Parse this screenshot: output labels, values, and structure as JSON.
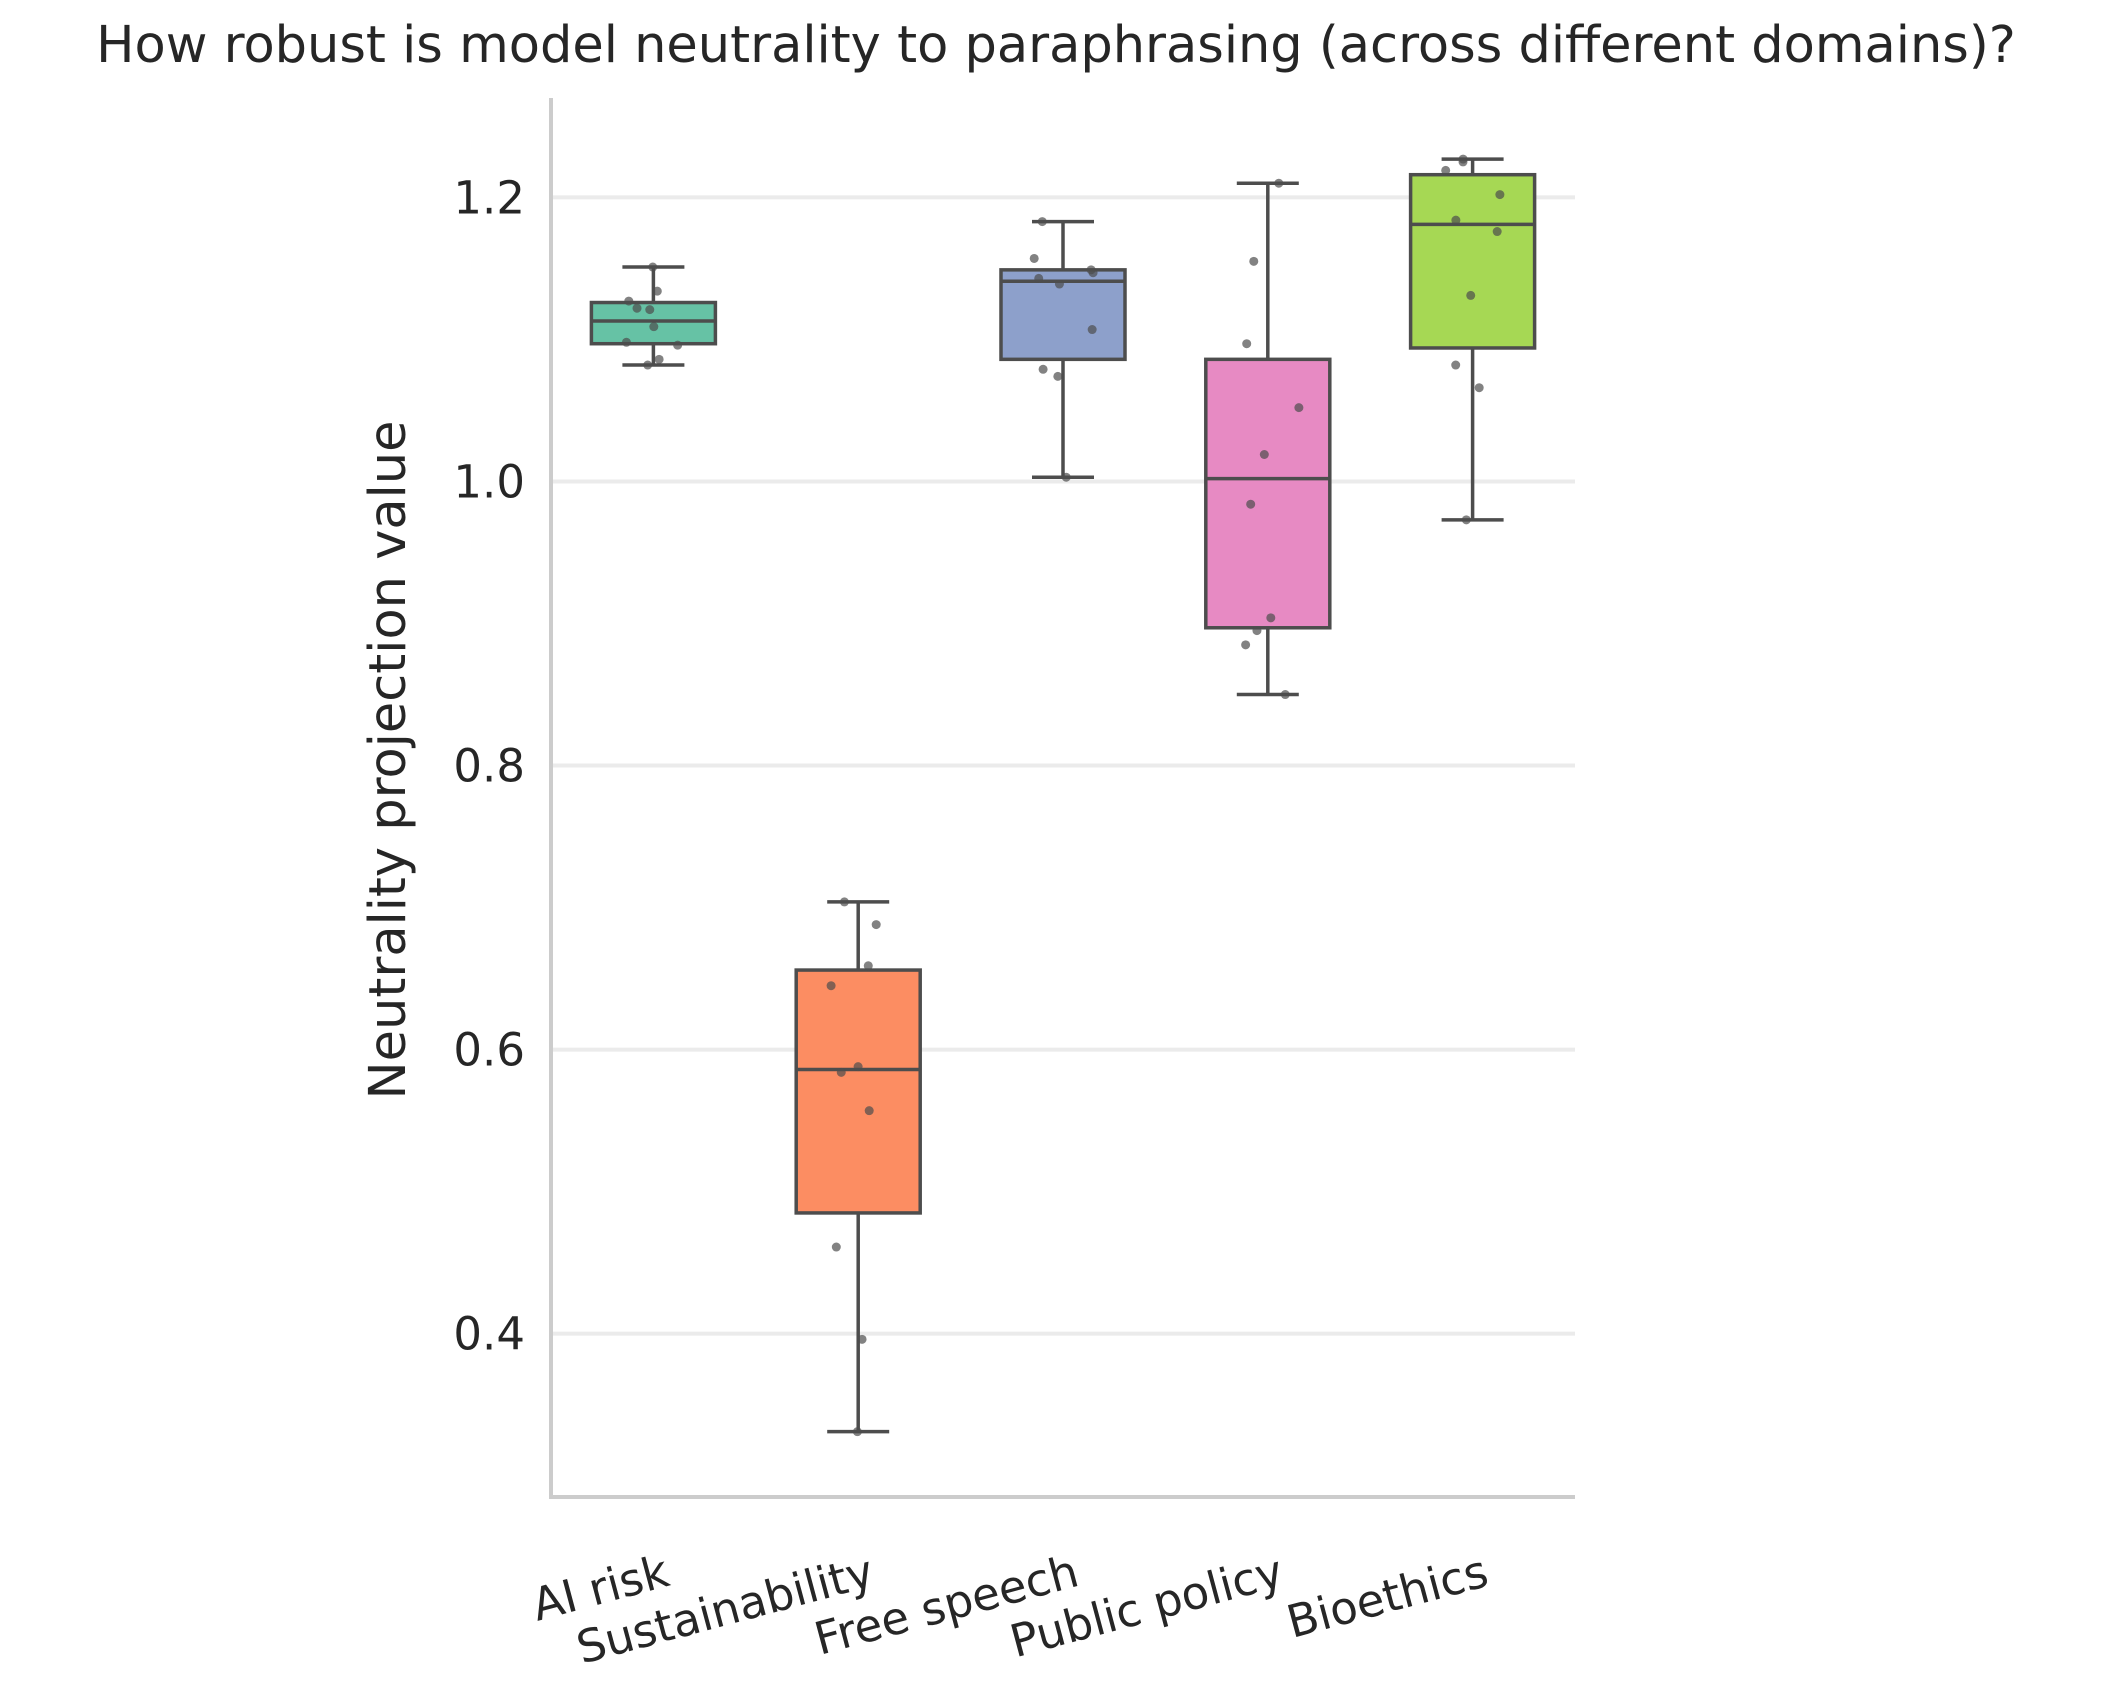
{
  "chart_data": {
    "type": "box",
    "title": "How robust is model neutrality to paraphrasing (across different domains)?",
    "xlabel": "",
    "ylabel": "Neutrality projection value",
    "ylim": [
      0.285,
      1.27
    ],
    "yticks": [
      0.4,
      0.6,
      0.8,
      1.0,
      1.2
    ],
    "ytick_labels": [
      "0.4",
      "0.6",
      "0.8",
      "1.0",
      "1.2"
    ],
    "grid": "horizontal",
    "categories": [
      "AI risk",
      "Sustainability",
      "Free speech",
      "Public policy",
      "Bioethics"
    ],
    "boxes": [
      {
        "category": "AI risk",
        "color": "#66c2a5",
        "whisker_low": 1.082,
        "q1": 1.097,
        "median": 1.113,
        "q3": 1.126,
        "whisker_high": 1.151,
        "points": [
          1.151,
          1.134,
          1.127,
          1.122,
          1.121,
          1.109,
          1.098,
          1.096,
          1.086,
          1.082
        ]
      },
      {
        "category": "Sustainability",
        "color": "#fc8d62",
        "whisker_low": 0.331,
        "q1": 0.485,
        "median": 0.586,
        "q3": 0.656,
        "whisker_high": 0.704,
        "points": [
          0.704,
          0.688,
          0.659,
          0.645,
          0.588,
          0.584,
          0.557,
          0.461,
          0.396,
          0.331
        ]
      },
      {
        "category": "Free speech",
        "color": "#8da0cb",
        "whisker_low": 1.003,
        "q1": 1.086,
        "median": 1.141,
        "q3": 1.149,
        "whisker_high": 1.183,
        "points": [
          1.183,
          1.157,
          1.149,
          1.147,
          1.143,
          1.139,
          1.107,
          1.079,
          1.074,
          1.003
        ]
      },
      {
        "category": "Public policy",
        "color": "#e78ac3",
        "whisker_low": 0.85,
        "q1": 0.897,
        "median": 1.002,
        "q3": 1.086,
        "whisker_high": 1.21,
        "points": [
          1.21,
          1.155,
          1.097,
          1.052,
          1.019,
          0.984,
          0.904,
          0.895,
          0.885,
          0.85
        ]
      },
      {
        "category": "Bioethics",
        "color": "#a6d854",
        "whisker_low": 0.973,
        "q1": 1.094,
        "median": 1.181,
        "q3": 1.216,
        "whisker_high": 1.227,
        "points": [
          1.227,
          1.225,
          1.219,
          1.202,
          1.184,
          1.176,
          1.131,
          1.082,
          1.066,
          0.973
        ]
      }
    ]
  }
}
